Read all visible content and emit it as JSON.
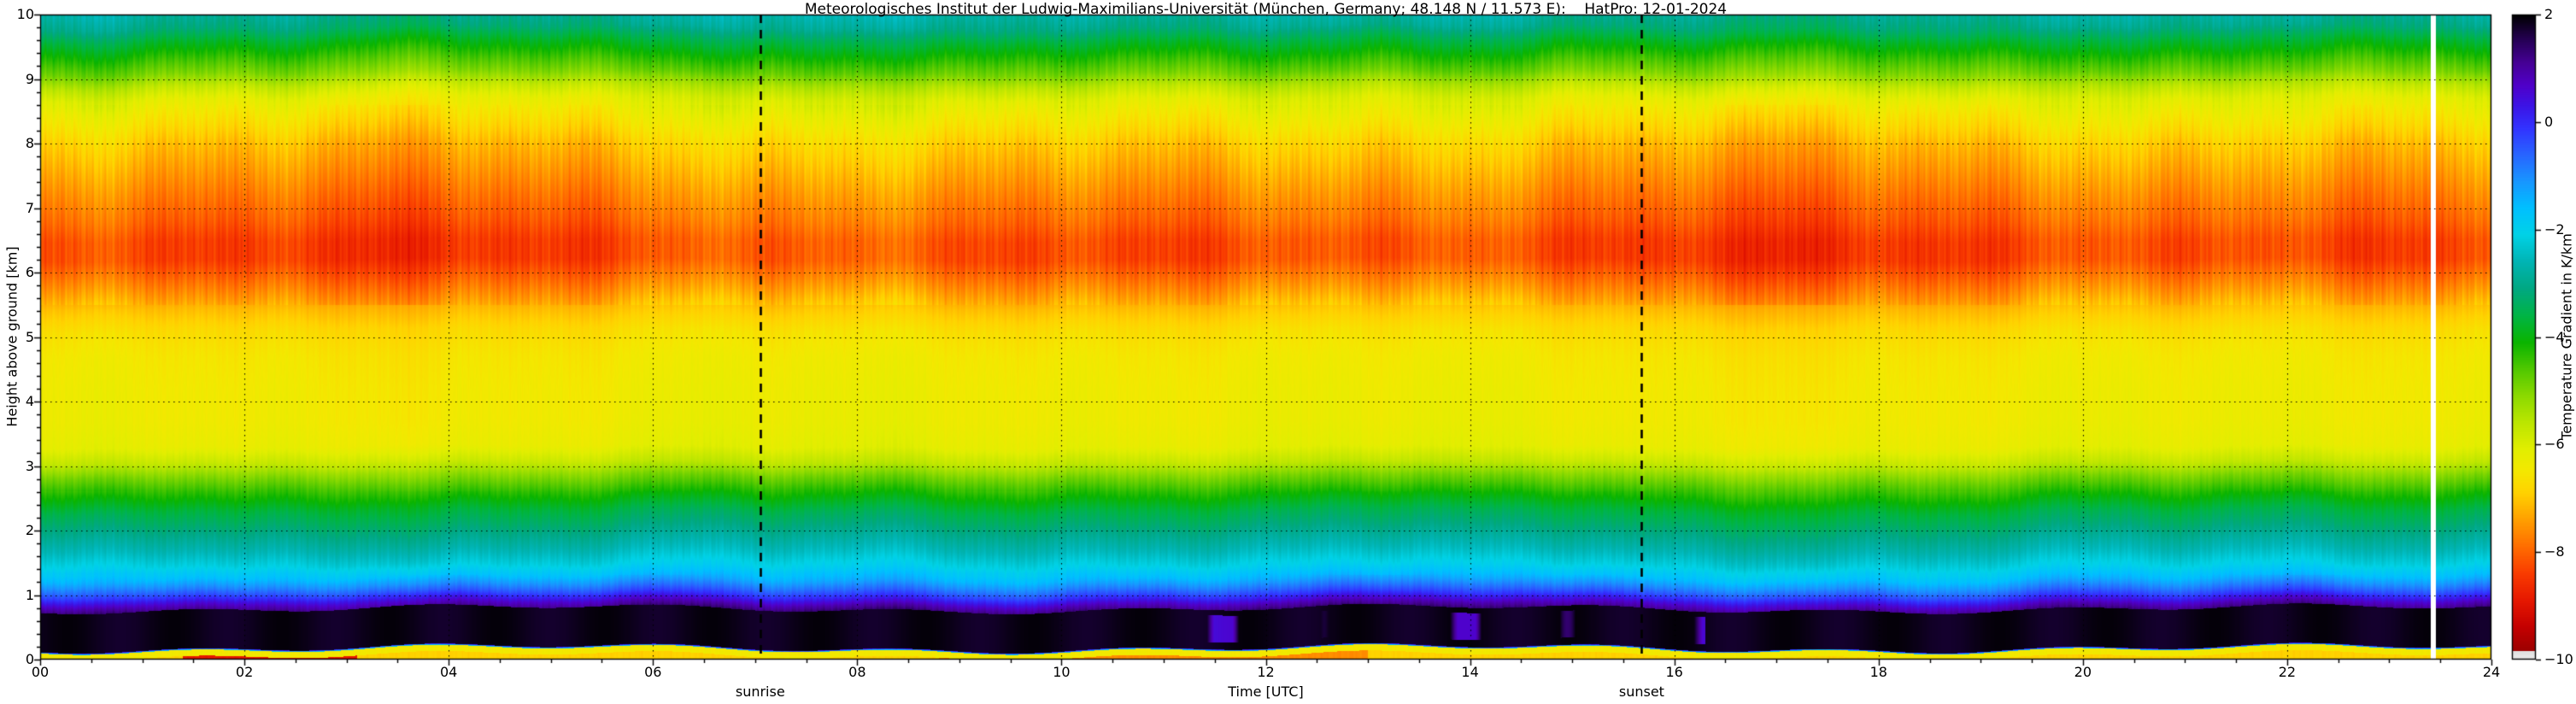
{
  "chart_data": {
    "type": "heatmap",
    "title": "Meteorologisches Institut der Ludwig-Maximilians-Universität (München, Germany; 48.148 N / 11.573 E):    HatPro: 12-01-2024",
    "xlabel": "Time [UTC]",
    "ylabel": "Height above ground [km]",
    "colorbar_label": "Temperature Gradient in K/km",
    "x_range": [
      0,
      24
    ],
    "y_range": [
      0,
      10
    ],
    "value_range": [
      -10,
      2
    ],
    "x_tick_labels": [
      "00",
      "02",
      "04",
      "06",
      "08",
      "10",
      "12",
      "14",
      "16",
      "18",
      "20",
      "22",
      "24"
    ],
    "y_tick_labels": [
      "0",
      "1",
      "2",
      "3",
      "4",
      "5",
      "6",
      "7",
      "8",
      "9",
      "10"
    ],
    "colorbar_tick_labels": [
      "2",
      "0",
      "−2",
      "−4",
      "−6",
      "−8",
      "−10"
    ],
    "colorbar_tick_values": [
      2,
      0,
      -2,
      -4,
      -6,
      -8,
      -10
    ],
    "grid": {
      "h_lines_km": [
        1,
        2,
        3,
        4,
        5,
        6,
        7,
        8,
        9
      ],
      "v_lines_utc": [
        2,
        4,
        6,
        8,
        10,
        12,
        14,
        16,
        18,
        20,
        22
      ],
      "style": "dotted"
    },
    "annotations": [
      {
        "label": "sunrise",
        "time_utc": 7.05,
        "line_style": "dashed"
      },
      {
        "label": "sunset",
        "time_utc": 15.68,
        "line_style": "dashed"
      }
    ],
    "data_gap_utc": [
      23.41,
      23.46
    ],
    "background_color": "#ffffff",
    "axis_color": "#000000",
    "colormap_stops": [
      {
        "value": -10.0,
        "color": "#ebebeb"
      },
      {
        "value": -9.86,
        "color": "#e0e0e0"
      },
      {
        "value": -9.85,
        "color": "#9c0000"
      },
      {
        "value": -9.4,
        "color": "#c40000"
      },
      {
        "value": -8.9,
        "color": "#e61800"
      },
      {
        "value": -8.4,
        "color": "#f93c00"
      },
      {
        "value": -7.9,
        "color": "#ff6e00"
      },
      {
        "value": -7.4,
        "color": "#ffa000"
      },
      {
        "value": -6.9,
        "color": "#ffd200"
      },
      {
        "value": -6.5,
        "color": "#f4e800"
      },
      {
        "value": -6.1,
        "color": "#e2ee00"
      },
      {
        "value": -5.6,
        "color": "#bce600"
      },
      {
        "value": -5.1,
        "color": "#8cda00"
      },
      {
        "value": -4.6,
        "color": "#50c800"
      },
      {
        "value": -4.1,
        "color": "#0ab400"
      },
      {
        "value": -3.6,
        "color": "#00b446"
      },
      {
        "value": -3.1,
        "color": "#00a882"
      },
      {
        "value": -2.6,
        "color": "#00b4b4"
      },
      {
        "value": -2.1,
        "color": "#00d2e6"
      },
      {
        "value": -1.6,
        "color": "#00c0ff"
      },
      {
        "value": -1.1,
        "color": "#1896ff"
      },
      {
        "value": -0.6,
        "color": "#2864ff"
      },
      {
        "value": -0.1,
        "color": "#3232ff"
      },
      {
        "value": 0.3,
        "color": "#3c14e6"
      },
      {
        "value": 0.7,
        "color": "#5000c8"
      },
      {
        "value": 1.1,
        "color": "#460096"
      },
      {
        "value": 1.5,
        "color": "#28005a"
      },
      {
        "value": 2.0,
        "color": "#000000"
      }
    ],
    "mean_profile": {
      "height_km": [
        0.0,
        0.05,
        0.1,
        0.14,
        0.17,
        0.22,
        0.45,
        0.7,
        0.78,
        0.86,
        0.93,
        1.0,
        1.1,
        1.25,
        1.45,
        1.7,
        2.0,
        2.3,
        2.6,
        2.85,
        3.05,
        3.3,
        3.7,
        4.2,
        4.7,
        5.1,
        5.45,
        5.75,
        6.0,
        6.2,
        6.5,
        6.8,
        7.2,
        7.6,
        8.0,
        8.4,
        8.7,
        8.9,
        9.1,
        9.35,
        9.6,
        9.8,
        10.0
      ],
      "gradient_K_per_km": [
        -7.3,
        -6.9,
        -6.5,
        -3.0,
        0.5,
        1.75,
        1.8,
        1.65,
        1.2,
        0.75,
        0.25,
        -0.25,
        -0.8,
        -1.5,
        -2.1,
        -2.6,
        -3.1,
        -3.6,
        -4.3,
        -5.0,
        -5.7,
        -6.2,
        -6.35,
        -6.4,
        -6.5,
        -6.7,
        -7.1,
        -7.6,
        -8.0,
        -8.3,
        -8.3,
        -8.0,
        -7.7,
        -7.35,
        -7.0,
        -6.5,
        -6.1,
        -5.6,
        -4.9,
        -4.3,
        -3.7,
        -3.1,
        -2.8
      ]
    },
    "features": {
      "surface_layer_top_km": 0.15,
      "inversion_black_layer_km": [
        0.17,
        0.78
      ],
      "purple_patches_utc": [
        9.8,
        16.3
      ],
      "surface_red_segments_utc": [
        [
          1.4,
          3.1
        ]
      ],
      "surface_orange_segments_utc": [
        [
          8.8,
          13.0
        ]
      ]
    }
  }
}
